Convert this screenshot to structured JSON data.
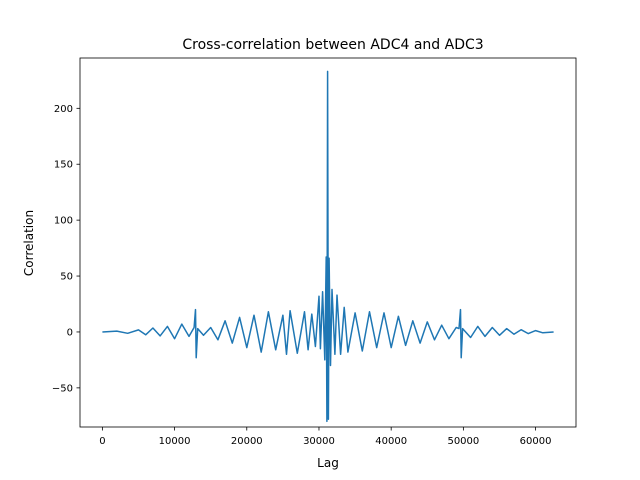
{
  "chart_data": {
    "type": "line",
    "title": "Cross-correlation between ADC4 and ADC3",
    "xlabel": "Lag",
    "ylabel": "Correlation",
    "xlim": [
      -3100,
      65600
    ],
    "ylim": [
      -85,
      245
    ],
    "x_ticks": [
      0,
      10000,
      20000,
      30000,
      40000,
      50000,
      60000
    ],
    "y_ticks": [
      -50,
      0,
      50,
      100,
      150,
      200
    ],
    "x_tick_labels": [
      "0",
      "10000",
      "20000",
      "30000",
      "40000",
      "50000",
      "60000"
    ],
    "y_tick_labels": [
      "−50",
      "0",
      "50",
      "100",
      "150",
      "200"
    ],
    "line_color": "#1f77b4",
    "grid": false,
    "series": [
      {
        "points": [
          [
            0,
            0
          ],
          [
            2000,
            0.8
          ],
          [
            3500,
            -1.2
          ],
          [
            5000,
            1.8
          ],
          [
            6000,
            -2.5
          ],
          [
            7000,
            3.5
          ],
          [
            8000,
            -3.5
          ],
          [
            9000,
            5
          ],
          [
            10000,
            -6
          ],
          [
            11000,
            7
          ],
          [
            12000,
            -4
          ],
          [
            12700,
            4
          ],
          [
            12900,
            20
          ],
          [
            13000,
            -23
          ],
          [
            13200,
            3
          ],
          [
            14000,
            -3
          ],
          [
            15000,
            4
          ],
          [
            16000,
            -7
          ],
          [
            17000,
            10
          ],
          [
            18000,
            -10
          ],
          [
            19000,
            13
          ],
          [
            20000,
            -14
          ],
          [
            21000,
            15
          ],
          [
            22000,
            -18
          ],
          [
            23000,
            18
          ],
          [
            24000,
            -16
          ],
          [
            25000,
            15
          ],
          [
            25500,
            -20
          ],
          [
            26000,
            19
          ],
          [
            27000,
            -19
          ],
          [
            28000,
            18
          ],
          [
            28500,
            -16
          ],
          [
            29000,
            16
          ],
          [
            29500,
            -13
          ],
          [
            30000,
            32
          ],
          [
            30200,
            -15
          ],
          [
            30500,
            36
          ],
          [
            30800,
            -25
          ],
          [
            31000,
            67
          ],
          [
            31100,
            -80
          ],
          [
            31200,
            233
          ],
          [
            31300,
            -78
          ],
          [
            31400,
            66
          ],
          [
            31600,
            -30
          ],
          [
            31800,
            38
          ],
          [
            32200,
            -20
          ],
          [
            32500,
            33
          ],
          [
            33000,
            -20
          ],
          [
            33500,
            22
          ],
          [
            34000,
            -18
          ],
          [
            35000,
            17
          ],
          [
            36000,
            -17
          ],
          [
            37000,
            18
          ],
          [
            38000,
            -14
          ],
          [
            39000,
            17
          ],
          [
            40000,
            -14
          ],
          [
            41000,
            14
          ],
          [
            42000,
            -12
          ],
          [
            43000,
            10
          ],
          [
            44000,
            -10
          ],
          [
            45000,
            9
          ],
          [
            46000,
            -7
          ],
          [
            47000,
            6
          ],
          [
            48000,
            -6
          ],
          [
            49000,
            4
          ],
          [
            49400,
            3
          ],
          [
            49600,
            20
          ],
          [
            49700,
            -23
          ],
          [
            49900,
            3
          ],
          [
            51000,
            -5
          ],
          [
            52000,
            5
          ],
          [
            53000,
            -4
          ],
          [
            54000,
            4
          ],
          [
            55000,
            -3
          ],
          [
            56000,
            3
          ],
          [
            57000,
            -2
          ],
          [
            58000,
            2
          ],
          [
            59000,
            -1.5
          ],
          [
            60000,
            1.2
          ],
          [
            61000,
            -0.8
          ],
          [
            62500,
            0
          ]
        ]
      }
    ]
  }
}
